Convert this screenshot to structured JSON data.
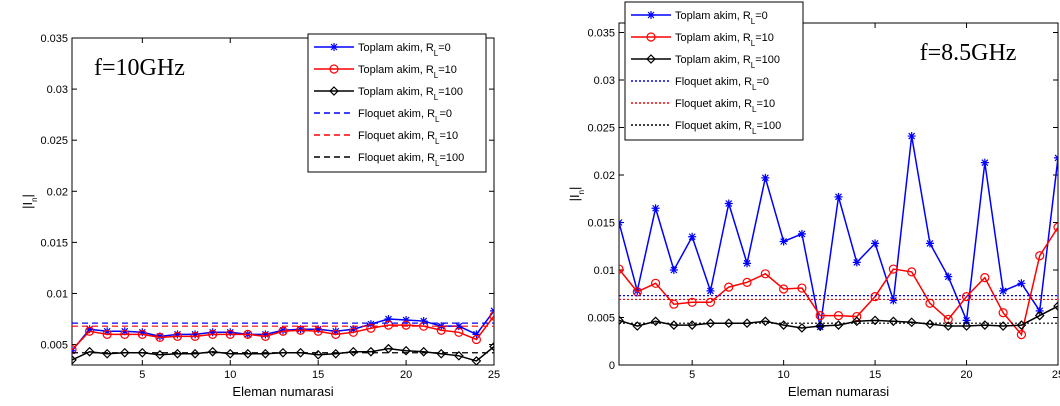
{
  "chart_data": [
    {
      "type": "line",
      "title": "f=10GHz",
      "xlabel": "Eleman numarasi",
      "ylabel": "|In|",
      "x": [
        1,
        2,
        3,
        4,
        5,
        6,
        7,
        8,
        9,
        10,
        11,
        12,
        13,
        14,
        15,
        16,
        17,
        18,
        19,
        20,
        21,
        22,
        23,
        24,
        25
      ],
      "xlim": [
        1,
        25
      ],
      "xticks": [
        5,
        10,
        15,
        20,
        25
      ],
      "ylim": [
        0.003,
        0.035
      ],
      "yticks": [
        0.005,
        0.01,
        0.015,
        0.02,
        0.025,
        0.03,
        0.035
      ],
      "legend": "upper right",
      "series": [
        {
          "name": "Toplam akim, RL=0",
          "color": "#0000ff",
          "marker": "star",
          "linestyle": "solid",
          "values": [
            0.0044,
            0.0065,
            0.0063,
            0.0063,
            0.0062,
            0.0058,
            0.006,
            0.006,
            0.0062,
            0.0062,
            0.006,
            0.006,
            0.0064,
            0.0065,
            0.0065,
            0.0063,
            0.0065,
            0.007,
            0.0075,
            0.0074,
            0.0073,
            0.0068,
            0.0068,
            0.006,
            0.0083
          ]
        },
        {
          "name": "Toplam akim, RL=10",
          "color": "#ff0000",
          "marker": "circle",
          "linestyle": "solid",
          "values": [
            0.0045,
            0.0063,
            0.006,
            0.006,
            0.006,
            0.0057,
            0.0058,
            0.0058,
            0.006,
            0.006,
            0.006,
            0.0058,
            0.0063,
            0.0064,
            0.0063,
            0.006,
            0.0062,
            0.0066,
            0.0069,
            0.0069,
            0.0068,
            0.0064,
            0.0062,
            0.0055,
            0.0078
          ]
        },
        {
          "name": "Toplam akim, RL=100",
          "color": "#000000",
          "marker": "diamond",
          "linestyle": "solid",
          "values": [
            0.0035,
            0.0043,
            0.0041,
            0.0042,
            0.0042,
            0.004,
            0.0041,
            0.0041,
            0.0043,
            0.0041,
            0.0041,
            0.0041,
            0.0042,
            0.0042,
            0.004,
            0.0041,
            0.0043,
            0.0043,
            0.0046,
            0.0044,
            0.0043,
            0.0041,
            0.0039,
            0.0034,
            0.0048
          ]
        },
        {
          "name": "Floquet akim, RL=0",
          "color": "#0000ff",
          "linestyle": "dashed",
          "hline": 0.0071
        },
        {
          "name": "Floquet akim, RL=10",
          "color": "#ff0000",
          "linestyle": "dashed",
          "hline": 0.0068
        },
        {
          "name": "Floquet akim, RL=100",
          "color": "#000000",
          "linestyle": "dashed",
          "hline": 0.0042
        }
      ]
    },
    {
      "type": "line",
      "title": "f=8.5GHz",
      "xlabel": "Eleman numarasi",
      "ylabel": "|In|",
      "x": [
        1,
        2,
        3,
        4,
        5,
        6,
        7,
        8,
        9,
        10,
        11,
        12,
        13,
        14,
        15,
        16,
        17,
        18,
        19,
        20,
        21,
        22,
        23,
        24,
        25
      ],
      "xlim": [
        1,
        25
      ],
      "xticks": [
        5,
        10,
        15,
        20,
        25
      ],
      "ylim": [
        0,
        0.036
      ],
      "yticks": [
        0,
        0.005,
        0.01,
        0.015,
        0.02,
        0.025,
        0.03,
        0.035
      ],
      "legend": "upper left",
      "series": [
        {
          "name": "Toplam akim, RL=0",
          "color": "#0000ff",
          "marker": "star",
          "linestyle": "solid",
          "values": [
            0.015,
            0.0078,
            0.0165,
            0.01,
            0.0135,
            0.0078,
            0.017,
            0.0107,
            0.0197,
            0.013,
            0.0138,
            0.004,
            0.0177,
            0.0108,
            0.0128,
            0.0068,
            0.0241,
            0.0128,
            0.0093,
            0.0047,
            0.0213,
            0.0078,
            0.0086,
            0.0057,
            0.0218
          ]
        },
        {
          "name": "Toplam akim, RL=10",
          "color": "#ff0000",
          "marker": "circle",
          "linestyle": "solid",
          "values": [
            0.0101,
            0.0077,
            0.0086,
            0.0064,
            0.0066,
            0.0066,
            0.0082,
            0.0087,
            0.0096,
            0.008,
            0.0081,
            0.0052,
            0.0052,
            0.0051,
            0.0072,
            0.0101,
            0.0098,
            0.0065,
            0.0048,
            0.0072,
            0.0092,
            0.0055,
            0.0032,
            0.0115,
            0.0145
          ]
        },
        {
          "name": "Toplam akim, RL=100",
          "color": "#000000",
          "marker": "diamond",
          "linestyle": "solid",
          "values": [
            0.0047,
            0.0041,
            0.0046,
            0.0042,
            0.0042,
            0.0044,
            0.0044,
            0.0044,
            0.0046,
            0.0042,
            0.0039,
            0.0041,
            0.0042,
            0.0046,
            0.0047,
            0.0046,
            0.0045,
            0.0043,
            0.0041,
            0.0041,
            0.0042,
            0.0041,
            0.0042,
            0.0052,
            0.0062
          ]
        },
        {
          "name": "Floquet akim, RL=0",
          "color": "#0000ff",
          "linestyle": "dotted",
          "hline": 0.0073
        },
        {
          "name": "Floquet akim, RL=10",
          "color": "#ff0000",
          "linestyle": "dotted",
          "hline": 0.0069
        },
        {
          "name": "Floquet akim, RL=100",
          "color": "#000000",
          "linestyle": "dotted",
          "hline": 0.0044
        }
      ]
    }
  ]
}
